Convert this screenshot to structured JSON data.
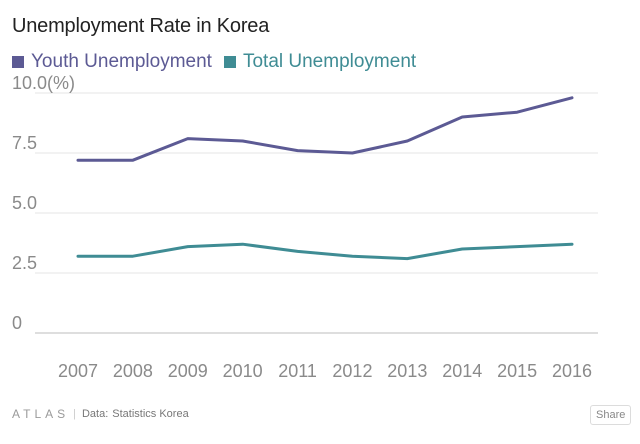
{
  "chart_data": {
    "type": "line",
    "title": "Unemployment Rate in Korea",
    "x": [
      "2007",
      "2008",
      "2009",
      "2010",
      "2011",
      "2012",
      "2013",
      "2014",
      "2015",
      "2016"
    ],
    "series": [
      {
        "name": "Youth Unemployment",
        "color": "#5c5a94",
        "values": [
          7.2,
          7.2,
          8.1,
          8.0,
          7.6,
          7.5,
          8.0,
          9.0,
          9.2,
          9.8
        ]
      },
      {
        "name": "Total Unemployment",
        "color": "#3f8c94",
        "values": [
          3.2,
          3.2,
          3.6,
          3.7,
          3.4,
          3.2,
          3.1,
          3.5,
          3.6,
          3.7
        ]
      }
    ],
    "yticks": [
      {
        "value": 0,
        "label": "0"
      },
      {
        "value": 2.5,
        "label": "2.5"
      },
      {
        "value": 5,
        "label": "5.0"
      },
      {
        "value": 7.5,
        "label": "7.5"
      },
      {
        "value": 10,
        "label": "10.0(%)"
      }
    ],
    "ylim": [
      0,
      10
    ],
    "grid": "horizontal",
    "legend_position": "top-left"
  },
  "footer": {
    "logo": "ATLAS",
    "source_label": "Data:",
    "source": "Statistics Korea",
    "share_label": "Share"
  }
}
